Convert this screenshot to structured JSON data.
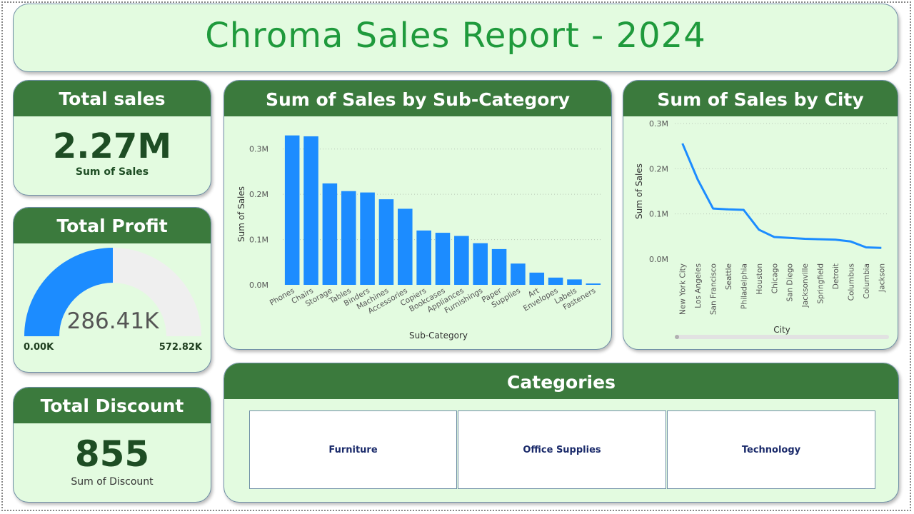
{
  "title": "Chroma Sales Report - 2024",
  "kpis": {
    "sales": {
      "header": "Total sales",
      "value": "2.27M",
      "label": "Sum of Sales"
    },
    "profit": {
      "header": "Total Profit",
      "value": "286.41K",
      "min": "0.00K",
      "max": "572.82K",
      "fill_fraction": 0.5
    },
    "discount": {
      "header": "Total Discount",
      "value": "855",
      "label": "Sum of Discount"
    }
  },
  "colors": {
    "bar": "#1c8cff",
    "header": "#3b7a3d",
    "card_bg": "#e3fbe0",
    "title": "#1f9a3c",
    "gauge_track": "#efefef"
  },
  "chart_data": [
    {
      "type": "bar",
      "title": "Sum of Sales by Sub-Category",
      "xlabel": "Sub-Category",
      "ylabel": "Sum of Sales",
      "ylim": [
        0,
        0.35
      ],
      "yticks": [
        "0.0M",
        "0.1M",
        "0.2M",
        "0.3M"
      ],
      "ytick_values": [
        0,
        0.1,
        0.2,
        0.3
      ],
      "categories": [
        "Phones",
        "Chairs",
        "Storage",
        "Tables",
        "Binders",
        "Machines",
        "Accessories",
        "Copiers",
        "Bookcases",
        "Appliances",
        "Furnishings",
        "Paper",
        "Supplies",
        "Art",
        "Envelopes",
        "Labels",
        "Fasteners"
      ],
      "values": [
        0.33,
        0.328,
        0.224,
        0.207,
        0.204,
        0.189,
        0.168,
        0.12,
        0.115,
        0.108,
        0.092,
        0.079,
        0.047,
        0.027,
        0.016,
        0.012,
        0.003
      ],
      "grid": true
    },
    {
      "type": "line",
      "title": "Sum of Sales by City",
      "xlabel": "City",
      "ylabel": "Sum of Sales",
      "ylim": [
        0,
        0.3
      ],
      "yticks": [
        "0.0M",
        "0.1M",
        "0.2M",
        "0.3M"
      ],
      "ytick_values": [
        0,
        0.1,
        0.2,
        0.3
      ],
      "categories": [
        "New York City",
        "Los Angeles",
        "San Francisco",
        "Seattle",
        "Philadelphia",
        "Houston",
        "Chicago",
        "San Diego",
        "Jacksonville",
        "Springfield",
        "Detroit",
        "Columbus",
        "Columbia",
        "Jackson"
      ],
      "values": [
        0.256,
        0.176,
        0.112,
        0.11,
        0.109,
        0.065,
        0.049,
        0.047,
        0.045,
        0.044,
        0.043,
        0.039,
        0.026,
        0.025
      ],
      "grid": true
    }
  ],
  "categories_panel": {
    "header": "Categories",
    "items": [
      "Furniture",
      "Office Supplies",
      "Technology"
    ]
  }
}
